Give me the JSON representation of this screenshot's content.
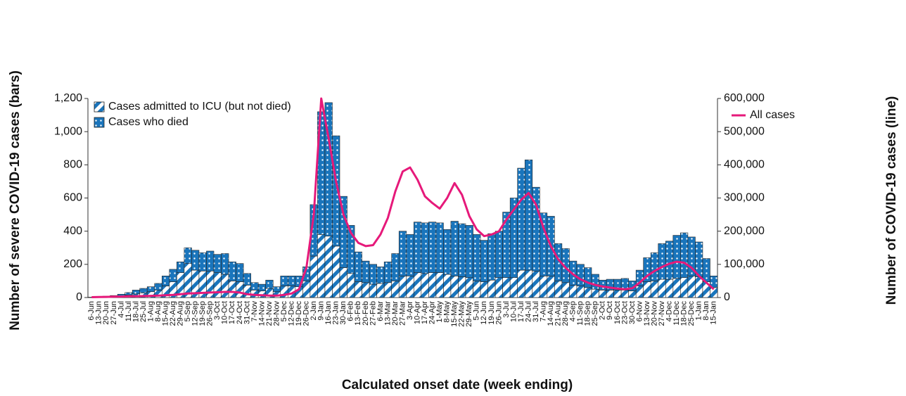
{
  "chart_data": {
    "type": "bar-line",
    "x_label": "Calculated onset date (week ending)",
    "y_label": "Number of severe COVID-19 cases (bars)",
    "y2_label": "Number of COVID-19 cases (line)",
    "categories": [
      "6-Jun",
      "13-Jun",
      "20-Jun",
      "27-Jun",
      "4-Jul",
      "11-Jul",
      "18-Jul",
      "25-Jul",
      "1-Aug",
      "8-Aug",
      "15-Aug",
      "22-Aug",
      "29-Aug",
      "5-Sep",
      "12-Sep",
      "19-Sep",
      "26-Sep",
      "3-Oct",
      "10-Oct",
      "17-Oct",
      "24-Oct",
      "31-Oct",
      "7-Nov",
      "14-Nov",
      "21-Nov",
      "28-Nov",
      "5-Dec",
      "12-Dec",
      "19-Dec",
      "26-Dec",
      "2-Jan",
      "9-Jan",
      "16-Jan",
      "23-Jan",
      "30-Jan",
      "6-Feb",
      "13-Feb",
      "20-Feb",
      "27-Feb",
      "6-Mar",
      "13-Mar",
      "20-Mar",
      "27-Mar",
      "3-Apr",
      "10-Apr",
      "17-Apr",
      "24-Apr",
      "1-May",
      "8-May",
      "15-May",
      "22-May",
      "29-May",
      "5-Jun",
      "12-Jun",
      "19-Jun",
      "26-Jun",
      "3-Jul",
      "10-Jul",
      "17-Jul",
      "24-Jul",
      "31-Jul",
      "7-Aug",
      "14-Aug",
      "21-Aug",
      "28-Aug",
      "4-Sep",
      "11-Sep",
      "18-Sep",
      "25-Sep",
      "2-Oct",
      "9-Oct",
      "16-Oct",
      "23-Oct",
      "30-Oct",
      "6-Nov",
      "13-Nov",
      "20-Nov",
      "27-Nov",
      "4-Dec",
      "11-Dec",
      "18-Dec",
      "25-Dec",
      "1-Jan",
      "8-Jan",
      "15-Jan"
    ],
    "series": [
      {
        "name": "Cases admitted to ICU (but not died)",
        "color": "#1a75bc",
        "pattern": "stripes",
        "values": [
          1,
          2,
          4,
          6,
          10,
          15,
          22,
          28,
          35,
          45,
          70,
          95,
          150,
          205,
          165,
          160,
          160,
          150,
          140,
          100,
          95,
          75,
          45,
          40,
          55,
          35,
          70,
          70,
          65,
          100,
          250,
          380,
          370,
          310,
          180,
          145,
          95,
          90,
          80,
          85,
          90,
          100,
          130,
          130,
          150,
          145,
          150,
          150,
          140,
          130,
          125,
          120,
          100,
          95,
          105,
          120,
          120,
          120,
          165,
          165,
          160,
          130,
          130,
          100,
          90,
          75,
          70,
          60,
          50,
          45,
          45,
          45,
          45,
          40,
          70,
          95,
          100,
          110,
          110,
          115,
          120,
          130,
          125,
          95,
          60
        ]
      },
      {
        "name": "Cases who died",
        "color": "#1a75bc",
        "pattern": "dots",
        "values": [
          1,
          1,
          4,
          6,
          10,
          15,
          23,
          27,
          30,
          40,
          60,
          75,
          65,
          95,
          120,
          110,
          120,
          110,
          125,
          115,
          110,
          70,
          45,
          40,
          50,
          30,
          60,
          60,
          65,
          85,
          310,
          740,
          805,
          665,
          430,
          290,
          180,
          130,
          120,
          100,
          125,
          165,
          270,
          250,
          305,
          305,
          305,
          300,
          270,
          330,
          320,
          315,
          280,
          250,
          280,
          280,
          395,
          480,
          615,
          665,
          505,
          380,
          360,
          225,
          205,
          145,
          130,
          120,
          90,
          60,
          65,
          65,
          70,
          60,
          95,
          145,
          170,
          215,
          230,
          260,
          270,
          235,
          210,
          140,
          70
        ]
      },
      {
        "name": "All cases",
        "color": "#e6197a",
        "axis": "y2",
        "values": [
          1000,
          1500,
          2000,
          2500,
          3000,
          3500,
          4000,
          4500,
          5000,
          6000,
          7000,
          8000,
          10000,
          12000,
          13000,
          14000,
          15000,
          16000,
          17000,
          17000,
          15000,
          10000,
          8000,
          7000,
          6000,
          6000,
          8000,
          12000,
          25000,
          90000,
          250000,
          600000,
          480000,
          350000,
          250000,
          195000,
          165000,
          155000,
          158000,
          190000,
          240000,
          320000,
          380000,
          392000,
          355000,
          305000,
          285000,
          268000,
          300000,
          345000,
          310000,
          245000,
          205000,
          185000,
          190000,
          200000,
          235000,
          265000,
          295000,
          315000,
          280000,
          210000,
          155000,
          115000,
          90000,
          70000,
          55000,
          45000,
          38000,
          33000,
          30000,
          27000,
          25000,
          28000,
          45000,
          65000,
          80000,
          92000,
          102000,
          108000,
          105000,
          90000,
          65000,
          45000,
          25000
        ]
      }
    ],
    "ylim": [
      0,
      1200
    ],
    "yticks": [
      0,
      200,
      400,
      600,
      800,
      {
        "value": 1000,
        "label": "1,000"
      },
      {
        "value": 1200,
        "label": "1,200"
      }
    ],
    "y2lim": [
      0,
      600000
    ],
    "y2ticks": [
      0,
      {
        "value": 100000,
        "label": "100,000"
      },
      {
        "value": 200000,
        "label": "200,000"
      },
      {
        "value": 300000,
        "label": "300,000"
      },
      {
        "value": 400000,
        "label": "400,000"
      },
      {
        "value": 500000,
        "label": "500,000"
      },
      {
        "value": 600000,
        "label": "600,000"
      }
    ]
  }
}
